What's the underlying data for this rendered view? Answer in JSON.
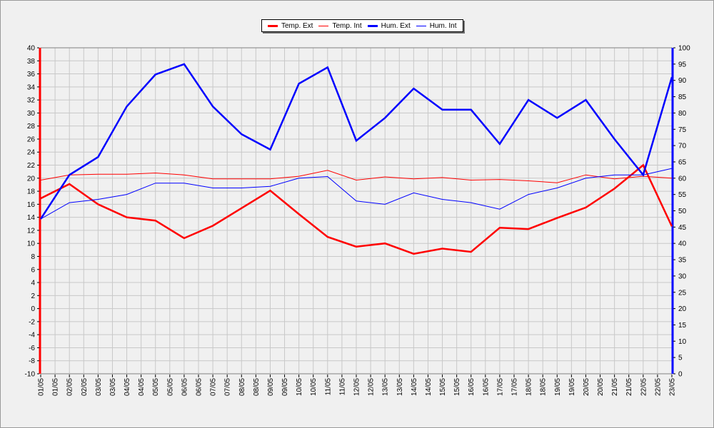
{
  "chart_data": {
    "type": "line",
    "x": [
      "01/05",
      "01/05",
      "02/05",
      "02/05",
      "03/05",
      "03/05",
      "04/05",
      "04/05",
      "05/05",
      "05/05",
      "06/05",
      "06/05",
      "07/05",
      "07/05",
      "08/05",
      "08/05",
      "09/05",
      "09/05",
      "10/05",
      "10/05",
      "11/05",
      "11/05",
      "12/05",
      "12/05",
      "13/05",
      "13/05",
      "14/05",
      "14/05",
      "15/05",
      "15/05",
      "16/05",
      "16/05",
      "17/05",
      "17/05",
      "18/05",
      "18/05",
      "19/05",
      "19/05",
      "20/05",
      "20/05",
      "21/05",
      "21/05",
      "22/05",
      "22/05",
      "23/05"
    ],
    "y_left": {
      "min": -10,
      "max": 40,
      "step": 2
    },
    "y_right": {
      "min": 0,
      "max": 100,
      "step": 5
    },
    "grid": true,
    "legend": "top-center",
    "series": [
      {
        "name": "Temp. Ext",
        "color": "#ff0000",
        "axis": "left",
        "width": "thick",
        "points": [
          [
            0,
            16.9
          ],
          [
            2,
            19.1
          ],
          [
            4,
            16.0
          ],
          [
            6,
            14.0
          ],
          [
            8,
            13.5
          ],
          [
            10,
            10.8
          ],
          [
            12,
            12.7
          ],
          [
            14,
            15.4
          ],
          [
            16,
            18.1
          ],
          [
            18,
            14.5
          ],
          [
            20,
            11.0
          ],
          [
            22,
            9.5
          ],
          [
            24,
            10.0
          ],
          [
            26,
            8.4
          ],
          [
            28,
            9.2
          ],
          [
            30,
            8.7
          ],
          [
            32,
            12.4
          ],
          [
            34,
            12.2
          ],
          [
            36,
            13.9
          ],
          [
            38,
            15.5
          ],
          [
            40,
            18.4
          ],
          [
            42,
            22.0
          ],
          [
            44,
            12.6
          ]
        ]
      },
      {
        "name": "Temp. Int",
        "color": "#ff0000",
        "axis": "left",
        "width": "thin",
        "points": [
          [
            0,
            19.7
          ],
          [
            2,
            20.5
          ],
          [
            4,
            20.6
          ],
          [
            6,
            20.6
          ],
          [
            8,
            20.8
          ],
          [
            10,
            20.5
          ],
          [
            12,
            19.9
          ],
          [
            14,
            19.9
          ],
          [
            16,
            19.9
          ],
          [
            18,
            20.3
          ],
          [
            20,
            21.2
          ],
          [
            22,
            19.7
          ],
          [
            24,
            20.2
          ],
          [
            26,
            19.9
          ],
          [
            28,
            20.1
          ],
          [
            30,
            19.7
          ],
          [
            32,
            19.8
          ],
          [
            34,
            19.6
          ],
          [
            36,
            19.3
          ],
          [
            38,
            20.5
          ],
          [
            40,
            19.9
          ],
          [
            42,
            20.3
          ],
          [
            44,
            20.0
          ]
        ]
      },
      {
        "name": "Hum. Ext",
        "color": "#0000ff",
        "axis": "right",
        "width": "thick",
        "points": [
          [
            0,
            47.5
          ],
          [
            2,
            61.0
          ],
          [
            4,
            66.5
          ],
          [
            6,
            82.0
          ],
          [
            8,
            91.8
          ],
          [
            10,
            95.0
          ],
          [
            12,
            82.0
          ],
          [
            14,
            73.5
          ],
          [
            16,
            68.8
          ],
          [
            18,
            89.0
          ],
          [
            20,
            94.0
          ],
          [
            22,
            71.5
          ],
          [
            24,
            78.5
          ],
          [
            26,
            87.5
          ],
          [
            28,
            81.0
          ],
          [
            30,
            81.0
          ],
          [
            32,
            70.5
          ],
          [
            34,
            84.0
          ],
          [
            36,
            78.5
          ],
          [
            38,
            84.0
          ],
          [
            40,
            72.0
          ],
          [
            42,
            61.0
          ],
          [
            44,
            91.0
          ]
        ]
      },
      {
        "name": "Hum. Int",
        "color": "#0000ff",
        "axis": "right",
        "width": "thin",
        "points": [
          [
            0,
            47.5
          ],
          [
            2,
            52.5
          ],
          [
            4,
            53.5
          ],
          [
            6,
            55.0
          ],
          [
            8,
            58.5
          ],
          [
            10,
            58.5
          ],
          [
            12,
            57.0
          ],
          [
            14,
            57.0
          ],
          [
            16,
            57.5
          ],
          [
            18,
            60.0
          ],
          [
            20,
            60.5
          ],
          [
            22,
            53.0
          ],
          [
            24,
            52.0
          ],
          [
            26,
            55.5
          ],
          [
            28,
            53.5
          ],
          [
            30,
            52.5
          ],
          [
            32,
            50.5
          ],
          [
            34,
            55.0
          ],
          [
            36,
            57.0
          ],
          [
            38,
            60.0
          ],
          [
            40,
            61.0
          ],
          [
            42,
            61.0
          ],
          [
            44,
            63.0
          ]
        ]
      }
    ]
  }
}
